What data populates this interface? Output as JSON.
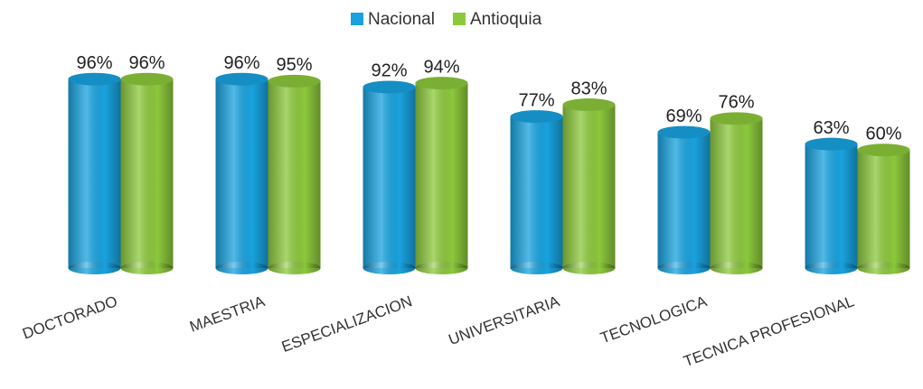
{
  "chart_data": {
    "type": "bar",
    "categories": [
      "DOCTORADO",
      "MAESTRIA",
      "ESPECIALIZACION",
      "UNIVERSITARIA",
      "TECNOLOGICA",
      "TECNICA PROFESIONAL"
    ],
    "series": [
      {
        "name": "Nacional",
        "color": "#19a2df",
        "values": [
          96,
          96,
          92,
          77,
          69,
          63
        ],
        "value_labels": [
          "96%",
          "96%",
          "92%",
          "77%",
          "69%",
          "63%"
        ]
      },
      {
        "name": "Antioquia",
        "color": "#8cc83c",
        "values": [
          96,
          95,
          94,
          83,
          76,
          60
        ],
        "value_labels": [
          "96%",
          "95%",
          "94%",
          "83%",
          "76%",
          "60%"
        ]
      }
    ],
    "ylim": [
      0,
      100
    ]
  }
}
